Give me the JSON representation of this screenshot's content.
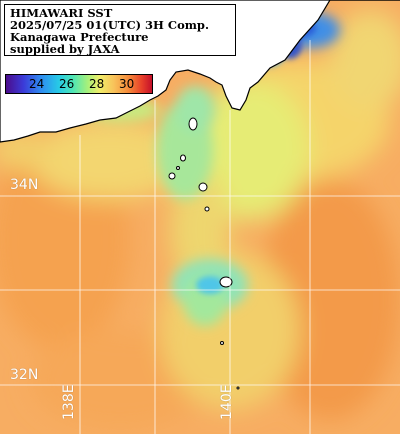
{
  "title_block": {
    "line1": "HIMAWARI SST",
    "line2": "2025/07/25 01(UTC) 3H Comp.",
    "line3": "Kanagawa Prefecture",
    "line4": "supplied by JAXA"
  },
  "colorbar": {
    "unit": "",
    "ticks": [
      "24",
      "26",
      "28",
      "30"
    ],
    "colors": [
      "#4b0c8c",
      "#3b3bd8",
      "#2f8cf0",
      "#27c9e6",
      "#4fe6b4",
      "#a8f07a",
      "#f0ee6a",
      "#f8c25a",
      "#f58a3a",
      "#e8402a",
      "#c4102a"
    ]
  },
  "grid_labels": {
    "lat_34": "34N",
    "lat_32": "32N",
    "lon_138": "138E",
    "lon_140": "140E"
  },
  "colors": {
    "land": "#ffffff",
    "coast": "#000000",
    "grid": "#ffffff",
    "sst_warm": "#f7a35a",
    "sst_mid": "#f5d56a",
    "sst_cool": "#a8e88a",
    "sst_cold": "#3b6fe0"
  }
}
